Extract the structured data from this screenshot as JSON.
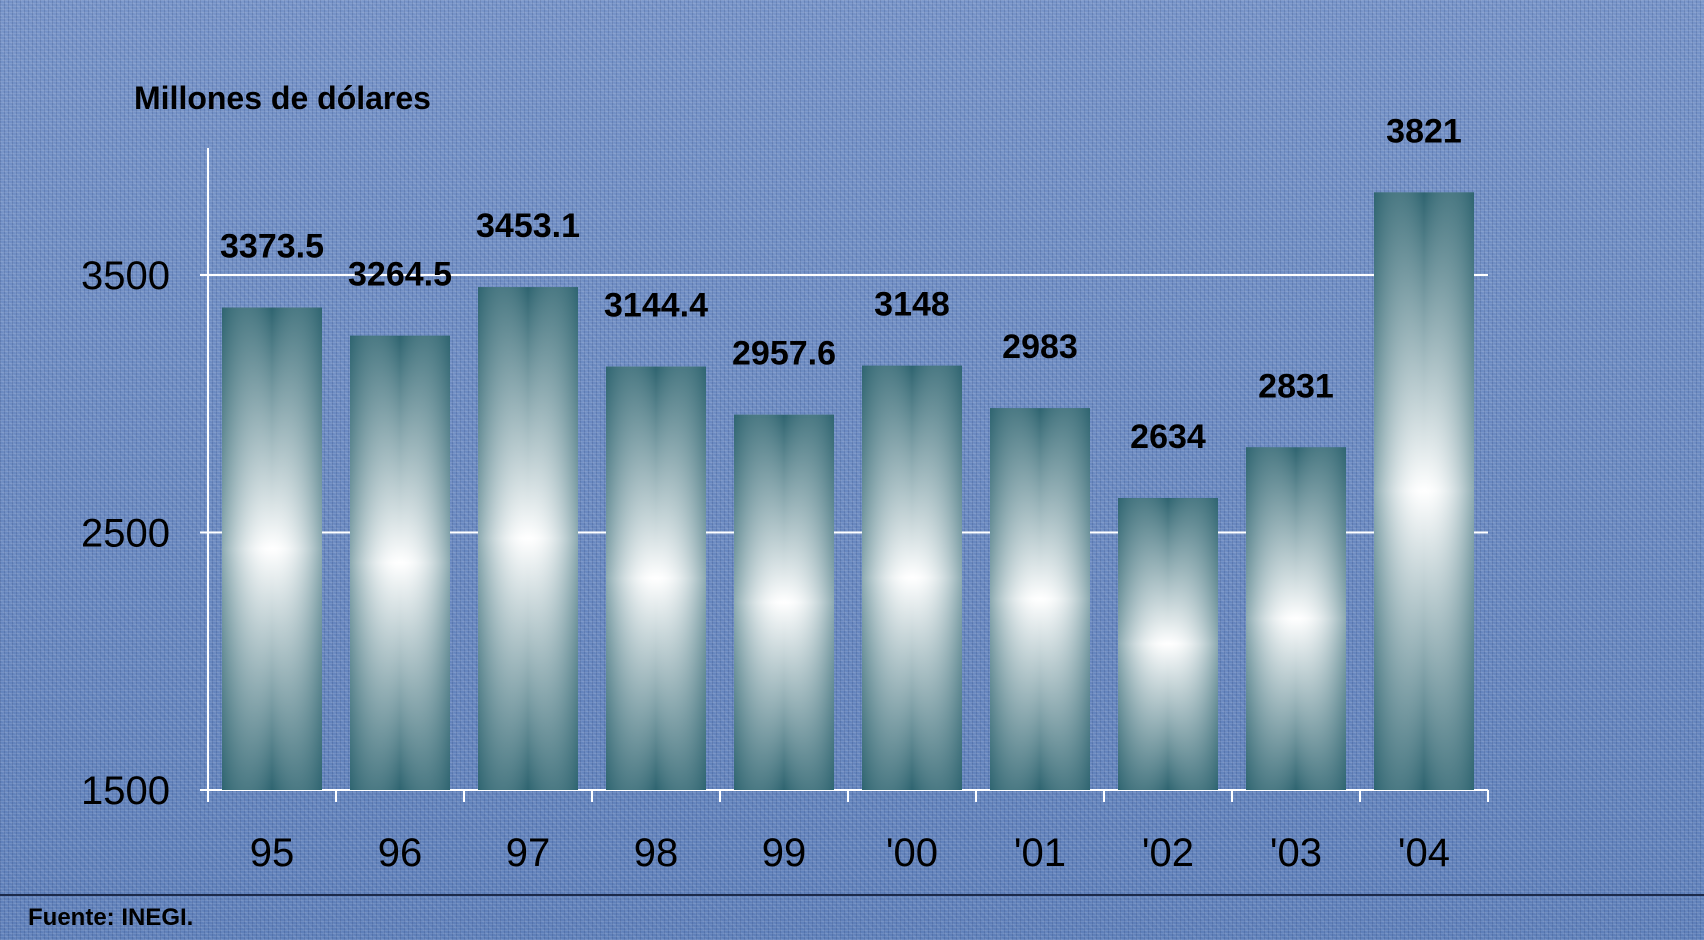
{
  "chart_data": {
    "type": "bar",
    "ylabel": "Millones de dólares",
    "categories": [
      "95",
      "96",
      "97",
      "98",
      "99",
      "'00",
      "'01",
      "'02",
      "'03",
      "'04"
    ],
    "values": [
      3373.5,
      3264.5,
      3453.1,
      3144.4,
      2957.6,
      3148,
      2983,
      2634,
      2831,
      3821
    ],
    "value_labels": [
      "3373.5",
      "3264.5",
      "3453.1",
      "3144.4",
      "2957.6",
      "3148",
      "2983",
      "2634",
      "2831",
      "3821"
    ],
    "ylim": [
      1500,
      3821
    ],
    "yticks": [
      1500,
      2500,
      3500
    ],
    "ytick_labels": [
      "1500",
      "2500",
      "3500"
    ],
    "grid": true,
    "source": "Fuente: INEGI.",
    "colors": {
      "bar_dark": "#2e6470",
      "bar_light": "#ffffff",
      "background": "#6f8fc4",
      "gridline": "#ffffff"
    }
  }
}
